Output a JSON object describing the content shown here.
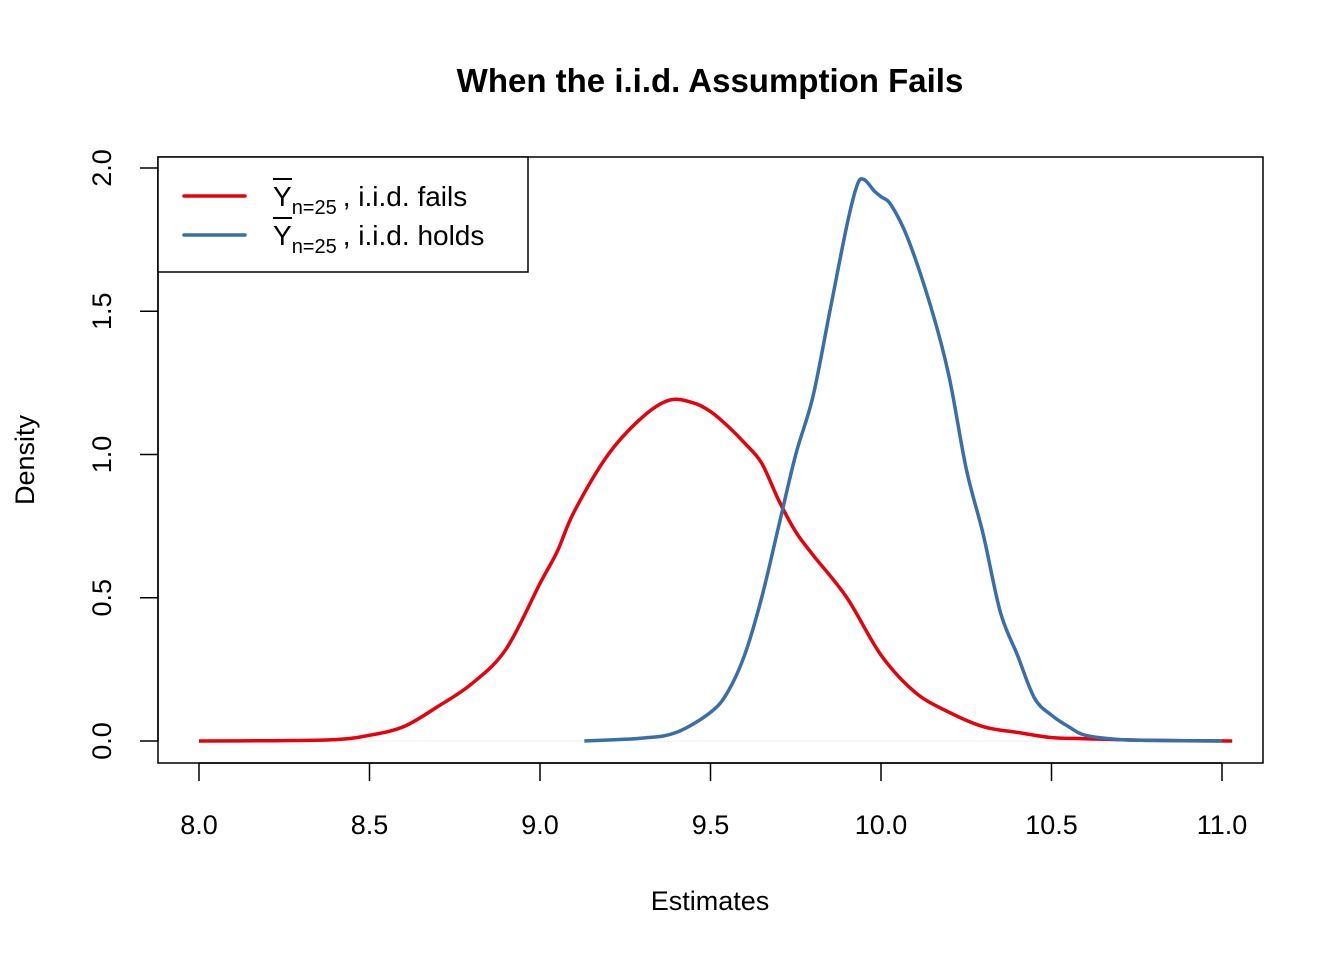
{
  "chart_data": {
    "type": "line",
    "title": "When the i.i.d. Assumption Fails",
    "xlabel": "Estimates",
    "ylabel": "Density",
    "xlim": [
      8.0,
      11.0
    ],
    "ylim": [
      0.0,
      2.0
    ],
    "xticks": [
      "8.0",
      "8.5",
      "9.0",
      "9.5",
      "10.0",
      "10.5",
      "11.0"
    ],
    "yticks": [
      "0.0",
      "0.5",
      "1.0",
      "1.5",
      "2.0"
    ],
    "grid": false,
    "legend_position": "top-left",
    "series": [
      {
        "name": ", i.i.d. fails",
        "symbol": "Y",
        "subscript": "n=25",
        "color": "#E8000B",
        "x": [
          8.0,
          8.2,
          8.4,
          8.5,
          8.6,
          8.7,
          8.8,
          8.9,
          9.0,
          9.05,
          9.1,
          9.2,
          9.3,
          9.38,
          9.45,
          9.5,
          9.55,
          9.6,
          9.65,
          9.7,
          9.75,
          9.8,
          9.9,
          10.0,
          10.1,
          10.2,
          10.3,
          10.4,
          10.5,
          10.6,
          10.8,
          11.03
        ],
        "y": [
          0.0,
          0.001,
          0.005,
          0.02,
          0.05,
          0.12,
          0.2,
          0.32,
          0.55,
          0.66,
          0.8,
          1.0,
          1.13,
          1.19,
          1.18,
          1.15,
          1.1,
          1.04,
          0.97,
          0.84,
          0.73,
          0.65,
          0.5,
          0.3,
          0.17,
          0.1,
          0.05,
          0.03,
          0.012,
          0.008,
          0.002,
          0.0
        ]
      },
      {
        "name": ", i.i.d. holds",
        "symbol": "Y",
        "subscript": "n=25",
        "color": "#3A6EA8",
        "x": [
          9.13,
          9.3,
          9.4,
          9.5,
          9.55,
          9.6,
          9.65,
          9.7,
          9.75,
          9.8,
          9.85,
          9.9,
          9.93,
          9.95,
          9.98,
          10.0,
          10.03,
          10.08,
          10.15,
          10.2,
          10.25,
          10.3,
          10.35,
          10.4,
          10.45,
          10.5,
          10.55,
          10.6,
          10.7,
          10.8,
          11.0
        ],
        "y": [
          0.0,
          0.01,
          0.03,
          0.1,
          0.17,
          0.3,
          0.5,
          0.75,
          1.0,
          1.2,
          1.5,
          1.8,
          1.94,
          1.96,
          1.92,
          1.9,
          1.87,
          1.75,
          1.5,
          1.27,
          0.95,
          0.72,
          0.45,
          0.3,
          0.15,
          0.09,
          0.05,
          0.02,
          0.005,
          0.002,
          0.0
        ]
      }
    ]
  }
}
